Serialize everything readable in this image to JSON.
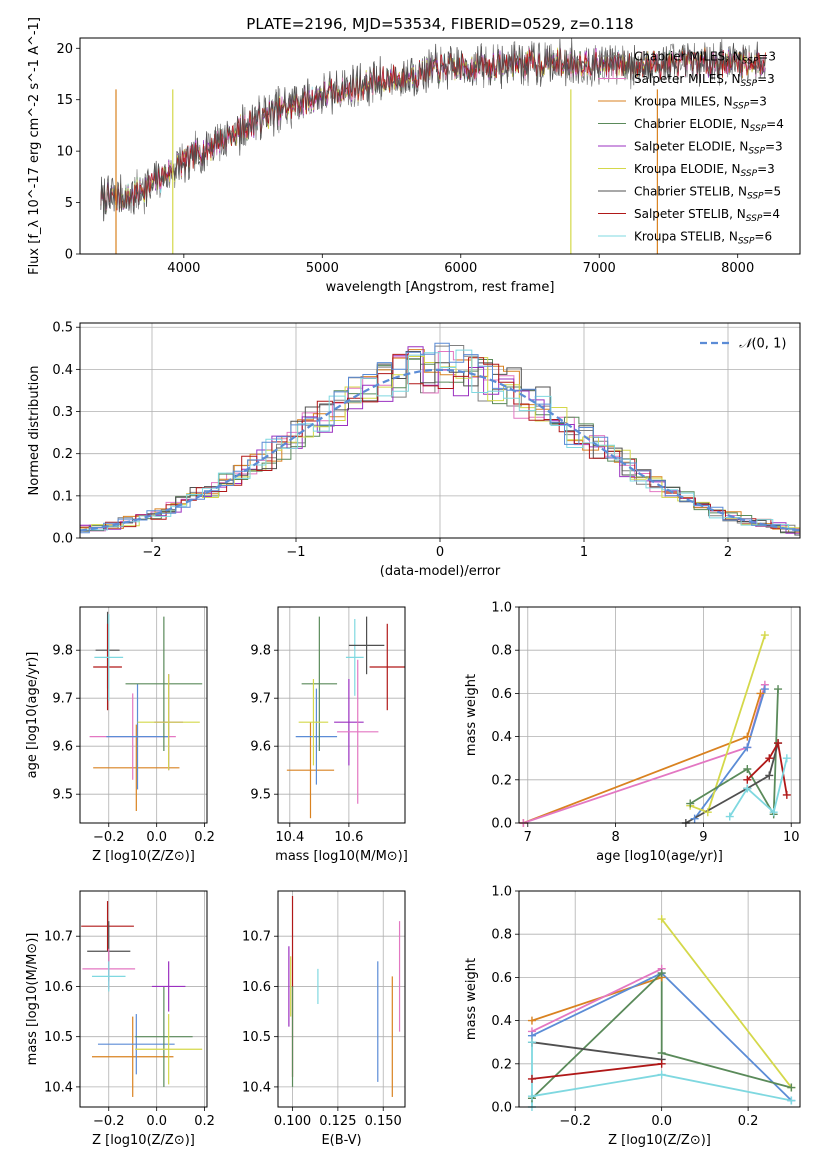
{
  "chart_data": [
    {
      "id": "spectrum",
      "type": "line",
      "title": "PLATE=2196, MJD=53534, FIBERID=0529, z=0.118",
      "xlabel": "wavelength [Angstrom, rest frame]",
      "ylabel": "Flux [f_λ 10^-17 erg cm^-2 s^-1 A^-1]",
      "xlim": [
        3250,
        8450
      ],
      "ylim": [
        0,
        21
      ],
      "xticks": [
        4000,
        5000,
        6000,
        7000,
        8000
      ],
      "yticks": [
        0,
        5,
        10,
        15,
        20
      ],
      "grid": false,
      "legend": "right",
      "continuum": {
        "x": [
          3400,
          3600,
          3800,
          4000,
          4200,
          4400,
          4600,
          4800,
          5000,
          5200,
          5400,
          5600,
          5800,
          6000,
          6200,
          6400,
          6600,
          6800,
          7000,
          7200,
          7400,
          7600,
          7800,
          8000,
          8200
        ],
        "y": [
          5.5,
          5.5,
          7.0,
          9.0,
          10.5,
          12.0,
          13.5,
          14.5,
          15.5,
          16.0,
          16.8,
          17.2,
          18.0,
          18.2,
          18.3,
          18.5,
          18.6,
          18.6,
          18.5,
          18.4,
          18.4,
          18.5,
          18.6,
          18.6,
          18.6
        ]
      },
      "series": [
        {
          "name": "Chabrier MILES, N_SSP=3",
          "color": "#808080"
        },
        {
          "name": "Salpeter MILES, N_SSP=3",
          "color": "#e377c2"
        },
        {
          "name": "Kroupa MILES, N_SSP=3",
          "color": "#d98220"
        },
        {
          "name": "Chabrier ELODIE, N_SSP=4",
          "color": "#5a8a5a"
        },
        {
          "name": "Salpeter ELODIE, N_SSP=3",
          "color": "#9b30c0"
        },
        {
          "name": "Kroupa ELODIE, N_SSP=3",
          "color": "#d4d84a"
        },
        {
          "name": "Chabrier STELIB, N_SSP=5",
          "color": "#505050"
        },
        {
          "name": "Salpeter STELIB, N_SSP=4",
          "color": "#b01818"
        },
        {
          "name": "Kroupa STELIB, N_SSP=6",
          "color": "#7fd8e0"
        }
      ]
    },
    {
      "id": "residuals",
      "type": "line",
      "xlabel": "(data-model)/error",
      "ylabel": "Normed distribution",
      "xlim": [
        -2.5,
        2.5
      ],
      "ylim": [
        0,
        0.51
      ],
      "xticks": [
        -2,
        -1,
        0,
        1,
        2
      ],
      "yticks": [
        0.0,
        0.1,
        0.2,
        0.3,
        0.4,
        0.5
      ],
      "grid": true,
      "legend": "top-right",
      "series": [
        {
          "name": "N(0,1)",
          "color": "#5b8cd6",
          "style": "dashed",
          "mean": 0,
          "sigma": 1
        }
      ]
    },
    {
      "id": "age-vs-Z",
      "type": "scatter",
      "xlabel": "Z [log10(Z/Z⊙)]",
      "ylabel": "age [log10(age/yr)]",
      "xlim": [
        -0.32,
        0.21
      ],
      "ylim": [
        9.44,
        9.89
      ],
      "xticks": [
        -0.2,
        0.0,
        0.2
      ],
      "yticks": [
        9.5,
        9.6,
        9.7,
        9.8
      ],
      "grid": true,
      "points": [
        {
          "x": -0.205,
          "y": 9.8,
          "xerr": 0.05,
          "yerr": 0.08,
          "color": "#505050"
        },
        {
          "x": -0.205,
          "y": 9.765,
          "xerr": 0.06,
          "yerr": 0.09,
          "color": "#b01818"
        },
        {
          "x": -0.2,
          "y": 9.785,
          "xerr": 0.06,
          "yerr": 0.09,
          "color": "#7fd8e0"
        },
        {
          "x": -0.085,
          "y": 9.555,
          "xerr": 0.18,
          "yerr": 0.09,
          "color": "#d98220"
        },
        {
          "x": -0.1,
          "y": 9.62,
          "xerr": 0.18,
          "yerr": 0.09,
          "color": "#e377c2"
        },
        {
          "x": -0.08,
          "y": 9.62,
          "xerr": 0.13,
          "yerr": 0.11,
          "color": "#5b8cd6"
        },
        {
          "x": 0.03,
          "y": 9.73,
          "xerr": 0.16,
          "yerr": 0.14,
          "color": "#5a8a5a"
        },
        {
          "x": 0.05,
          "y": 9.65,
          "xerr": 0.06,
          "yerr": 0.1,
          "color": "#9b30c0"
        },
        {
          "x": 0.05,
          "y": 9.65,
          "xerr": 0.13,
          "yerr": 0.1,
          "color": "#d4d84a"
        }
      ]
    },
    {
      "id": "age-vs-mass",
      "type": "scatter",
      "xlabel": "mass [log10(M/M⊙)]",
      "ylabel": "",
      "xlim": [
        10.36,
        10.79
      ],
      "ylim": [
        9.44,
        9.89
      ],
      "xticks": [
        10.4,
        10.6
      ],
      "yticks": [
        9.5,
        9.6,
        9.7,
        9.8
      ],
      "grid": true,
      "points": [
        {
          "x": 10.47,
          "y": 9.55,
          "xerr": 0.08,
          "yerr": 0.1,
          "color": "#d98220"
        },
        {
          "x": 10.49,
          "y": 9.62,
          "xerr": 0.07,
          "yerr": 0.1,
          "color": "#5b8cd6"
        },
        {
          "x": 10.5,
          "y": 9.73,
          "xerr": 0.06,
          "yerr": 0.14,
          "color": "#5a8a5a"
        },
        {
          "x": 10.48,
          "y": 9.65,
          "xerr": 0.05,
          "yerr": 0.09,
          "color": "#d4d84a"
        },
        {
          "x": 10.6,
          "y": 9.65,
          "xerr": 0.05,
          "yerr": 0.09,
          "color": "#9b30c0"
        },
        {
          "x": 10.63,
          "y": 9.63,
          "xerr": 0.07,
          "yerr": 0.15,
          "color": "#e377c2"
        },
        {
          "x": 10.62,
          "y": 9.785,
          "xerr": 0.03,
          "yerr": 0.08,
          "color": "#7fd8e0"
        },
        {
          "x": 10.66,
          "y": 9.81,
          "xerr": 0.06,
          "yerr": 0.06,
          "color": "#505050"
        },
        {
          "x": 10.73,
          "y": 9.765,
          "xerr": 0.06,
          "yerr": 0.09,
          "color": "#b01818"
        }
      ]
    },
    {
      "id": "mass-weight-vs-age",
      "type": "line",
      "xlabel": "age [log10(age/yr)]",
      "ylabel": "mass weight",
      "xlim": [
        6.9,
        10.1
      ],
      "ylim": [
        0,
        1.0
      ],
      "xticks": [
        7,
        8,
        9,
        10
      ],
      "yticks": [
        0.0,
        0.2,
        0.4,
        0.6,
        0.8,
        1.0
      ],
      "grid": true,
      "series": [
        {
          "color": "#d98220",
          "x": [
            6.95,
            9.5,
            9.65
          ],
          "y": [
            0.0,
            0.4,
            0.6
          ]
        },
        {
          "color": "#e377c2",
          "x": [
            6.95,
            9.5,
            9.7
          ],
          "y": [
            0.0,
            0.35,
            0.64
          ]
        },
        {
          "color": "#5b8cd6",
          "x": [
            8.9,
            9.5,
            9.7
          ],
          "y": [
            0.02,
            0.35,
            0.62
          ]
        },
        {
          "color": "#d4d84a",
          "x": [
            8.85,
            9.05,
            9.7
          ],
          "y": [
            0.08,
            0.05,
            0.87
          ]
        },
        {
          "color": "#5a8a5a",
          "x": [
            8.85,
            9.5,
            9.8,
            9.85
          ],
          "y": [
            0.09,
            0.25,
            0.04,
            0.62
          ]
        },
        {
          "color": "#505050",
          "x": [
            8.8,
            9.5,
            9.75,
            9.85
          ],
          "y": [
            0.0,
            0.16,
            0.22,
            0.37
          ]
        },
        {
          "color": "#b01818",
          "x": [
            9.5,
            9.75,
            9.85,
            9.95
          ],
          "y": [
            0.2,
            0.3,
            0.37,
            0.13
          ]
        },
        {
          "color": "#7fd8e0",
          "x": [
            9.3,
            9.5,
            9.8,
            9.95
          ],
          "y": [
            0.03,
            0.16,
            0.05,
            0.3
          ]
        }
      ]
    },
    {
      "id": "mass-vs-Z",
      "type": "scatter",
      "xlabel": "Z [log10(Z/Z⊙)]",
      "ylabel": "mass [log10(M/M⊙)]",
      "xlim": [
        -0.32,
        0.21
      ],
      "ylim": [
        10.36,
        10.79
      ],
      "xticks": [
        -0.2,
        0.0,
        0.2
      ],
      "yticks": [
        10.4,
        10.5,
        10.6,
        10.7
      ],
      "grid": true,
      "points": [
        {
          "x": -0.205,
          "y": 10.72,
          "xerr": 0.11,
          "yerr": 0.05,
          "color": "#b01818"
        },
        {
          "x": -0.2,
          "y": 10.67,
          "xerr": 0.09,
          "yerr": 0.06,
          "color": "#505050"
        },
        {
          "x": -0.2,
          "y": 10.635,
          "xerr": 0.11,
          "yerr": 0.04,
          "color": "#e377c2"
        },
        {
          "x": -0.2,
          "y": 10.62,
          "xerr": 0.07,
          "yerr": 0.03,
          "color": "#7fd8e0"
        },
        {
          "x": -0.1,
          "y": 10.46,
          "xerr": 0.17,
          "yerr": 0.08,
          "color": "#d98220"
        },
        {
          "x": -0.085,
          "y": 10.485,
          "xerr": 0.16,
          "yerr": 0.06,
          "color": "#5b8cd6"
        },
        {
          "x": 0.03,
          "y": 10.5,
          "xerr": 0.12,
          "yerr": 0.1,
          "color": "#5a8a5a"
        },
        {
          "x": 0.05,
          "y": 10.6,
          "xerr": 0.07,
          "yerr": 0.05,
          "color": "#9b30c0"
        },
        {
          "x": 0.05,
          "y": 10.475,
          "xerr": 0.14,
          "yerr": 0.07,
          "color": "#d4d84a"
        }
      ]
    },
    {
      "id": "mass-vs-ebv",
      "type": "scatter",
      "xlabel": "E(B-V)",
      "ylabel": "",
      "xlim": [
        0.092,
        0.162
      ],
      "ylim": [
        10.36,
        10.79
      ],
      "xticks": [
        0.1,
        0.125,
        0.15
      ],
      "yticks": [
        10.4,
        10.5,
        10.6,
        10.7
      ],
      "grid": true,
      "points": [
        {
          "x": 0.098,
          "y": 10.6,
          "yerr": 0.08,
          "color": "#9b30c0"
        },
        {
          "x": 0.099,
          "y": 10.6,
          "yerr": 0.06,
          "color": "#d4d84a"
        },
        {
          "x": 0.1,
          "y": 10.6,
          "yerr": 0.18,
          "color": "#b01818"
        },
        {
          "x": 0.1,
          "y": 10.5,
          "yerr": 0.1,
          "color": "#5a8a5a"
        },
        {
          "x": 0.114,
          "y": 10.6,
          "yerr": 0.035,
          "color": "#7fd8e0"
        },
        {
          "x": 0.147,
          "y": 10.53,
          "yerr": 0.12,
          "color": "#5b8cd6"
        },
        {
          "x": 0.155,
          "y": 10.5,
          "yerr": 0.12,
          "color": "#d98220"
        },
        {
          "x": 0.159,
          "y": 10.62,
          "yerr": 0.11,
          "color": "#e377c2"
        }
      ]
    },
    {
      "id": "mass-weight-vs-Z",
      "type": "line",
      "xlabel": "Z [log10(Z/Z⊙)]",
      "ylabel": "mass weight",
      "xlim": [
        -0.33,
        0.32
      ],
      "ylim": [
        0,
        1.0
      ],
      "xticks": [
        -0.2,
        0.0,
        0.2
      ],
      "yticks": [
        0.0,
        0.2,
        0.4,
        0.6,
        0.8,
        1.0
      ],
      "grid": true,
      "series": [
        {
          "color": "#d4d84a",
          "x": [
            0.0,
            0.3
          ],
          "y": [
            0.87,
            0.09
          ]
        },
        {
          "color": "#d98220",
          "x": [
            -0.3,
            0.0
          ],
          "y": [
            0.4,
            0.6
          ]
        },
        {
          "color": "#e377c2",
          "x": [
            -0.3,
            0.0
          ],
          "y": [
            0.35,
            0.64
          ]
        },
        {
          "color": "#5b8cd6",
          "x": [
            -0.3,
            0.0,
            0.3
          ],
          "y": [
            0.33,
            0.62,
            0.03
          ]
        },
        {
          "color": "#5a8a5a",
          "x": [
            -0.3,
            0.0,
            0.0,
            0.3
          ],
          "y": [
            0.04,
            0.62,
            0.25,
            0.09
          ]
        },
        {
          "color": "#505050",
          "x": [
            -0.3,
            0.0
          ],
          "y": [
            0.3,
            0.22
          ]
        },
        {
          "color": "#b01818",
          "x": [
            -0.3,
            0.0
          ],
          "y": [
            0.13,
            0.2
          ]
        },
        {
          "color": "#7fd8e0",
          "x": [
            -0.3,
            0.0,
            0.3
          ],
          "y": [
            0.05,
            0.15,
            0.03
          ]
        },
        {
          "color": "#7fd8e0",
          "x": [
            -0.3,
            -0.3
          ],
          "y": [
            0.0,
            0.3
          ]
        }
      ]
    }
  ]
}
